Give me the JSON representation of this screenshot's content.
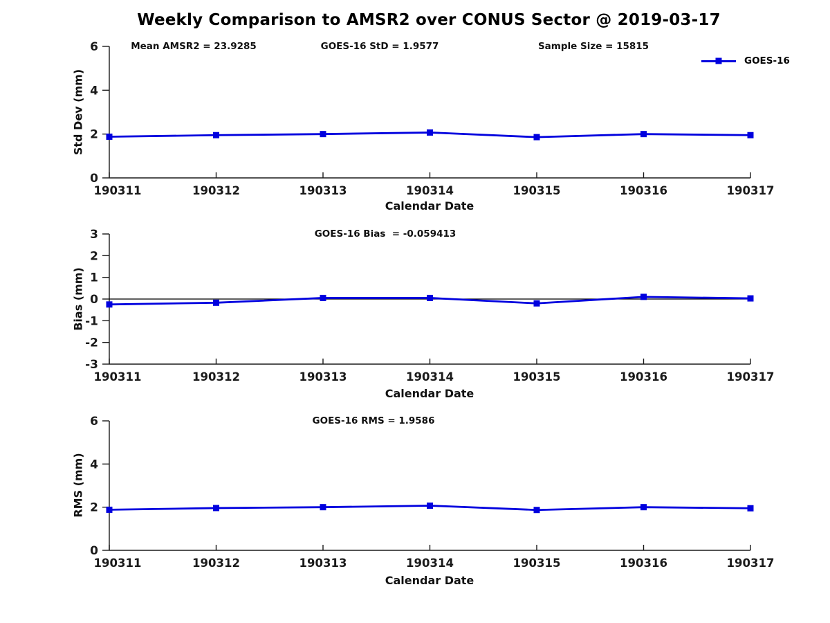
{
  "figure": {
    "title": "Weekly Comparison to AMSR2 over CONUS Sector @ 2019-03-17",
    "legend": {
      "label": "GOES-16",
      "series_color": "#0000DE",
      "marker": "filled-square"
    }
  },
  "chart_data": [
    {
      "type": "line",
      "title": "",
      "annotations": [
        "Mean AMSR2 = 23.9285",
        "GOES-16 StD = 1.9577",
        "Sample Size = 15815"
      ],
      "xlabel": "Calendar Date",
      "ylabel": "Std Dev (mm)",
      "categories": [
        "190311",
        "190312",
        "190313",
        "190314",
        "190315",
        "190316",
        "190317"
      ],
      "series": [
        {
          "name": "GOES-16",
          "values": [
            1.88,
            1.95,
            2.0,
            2.07,
            1.86,
            2.0,
            1.95
          ]
        }
      ],
      "ylim": [
        0,
        6
      ],
      "yticks": [
        0,
        2,
        4,
        6
      ],
      "grid": false,
      "zero_line": false,
      "legend_position": "top-right-outside"
    },
    {
      "type": "line",
      "title": "GOES-16 Bias  = -0.059413",
      "annotations": [],
      "xlabel": "Calendar Date",
      "ylabel": "Bias (mm)",
      "categories": [
        "190311",
        "190312",
        "190313",
        "190314",
        "190315",
        "190316",
        "190317"
      ],
      "series": [
        {
          "name": "GOES-16",
          "values": [
            -0.25,
            -0.17,
            0.05,
            0.05,
            -0.2,
            0.1,
            0.03
          ]
        }
      ],
      "ylim": [
        -3,
        3
      ],
      "yticks": [
        -3,
        -2,
        -1,
        0,
        1,
        2,
        3
      ],
      "grid": false,
      "zero_line": true,
      "legend_position": "none"
    },
    {
      "type": "line",
      "title": "GOES-16 RMS = 1.9586",
      "annotations": [],
      "xlabel": "Calendar Date",
      "ylabel": "RMS (mm)",
      "categories": [
        "190311",
        "190312",
        "190313",
        "190314",
        "190315",
        "190316",
        "190317"
      ],
      "series": [
        {
          "name": "GOES-16",
          "values": [
            1.88,
            1.96,
            2.0,
            2.07,
            1.87,
            2.0,
            1.95
          ]
        }
      ],
      "ylim": [
        0,
        6
      ],
      "yticks": [
        0,
        2,
        4,
        6
      ],
      "grid": false,
      "zero_line": false,
      "legend_position": "none"
    }
  ]
}
